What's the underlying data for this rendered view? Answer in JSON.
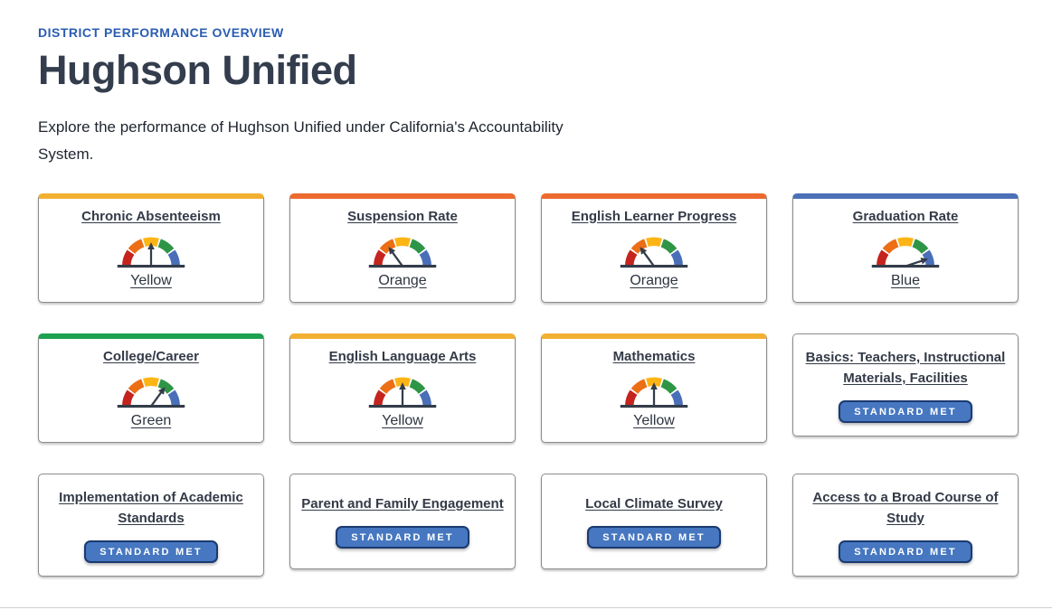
{
  "header": {
    "eyebrow": "DISTRICT PERFORMANCE OVERVIEW",
    "title": "Hughson Unified",
    "description": "Explore the performance of Hughson Unified under California's Accountability System."
  },
  "badge_label": "STANDARD MET",
  "colors": {
    "eyebrow_blue": "#2a5cb2",
    "heading": "#333d4d",
    "badge_fill": "#4677c0",
    "badge_border": "#1b3a70",
    "needle": "#333c4a",
    "gauge_segments": {
      "red": "#c5241e",
      "orange": "#ec6e15",
      "yellow": "#fdb515",
      "green": "#2f9546",
      "blue": "#4a6fb8"
    },
    "accents": {
      "yellow": "#f2b032",
      "orange": "#ec6a2e",
      "blue": "#4c70b8",
      "green": "#1ea150"
    }
  },
  "cards": [
    {
      "title": "Chronic Absenteeism",
      "type": "gauge",
      "status": "Yellow",
      "accent": "yellow",
      "icon": "gauge-icon"
    },
    {
      "title": "Suspension Rate",
      "type": "gauge",
      "status": "Orange",
      "accent": "orange",
      "icon": "gauge-icon"
    },
    {
      "title": "English Learner Progress",
      "type": "gauge",
      "status": "Orange",
      "accent": "orange",
      "icon": "gauge-icon"
    },
    {
      "title": "Graduation Rate",
      "type": "gauge",
      "status": "Blue",
      "accent": "blue",
      "icon": "gauge-icon"
    },
    {
      "title": "College/Career",
      "type": "gauge",
      "status": "Green",
      "accent": "green",
      "icon": "gauge-icon"
    },
    {
      "title": "English Language Arts",
      "type": "gauge",
      "status": "Yellow",
      "accent": "yellow",
      "icon": "gauge-icon"
    },
    {
      "title": "Mathematics",
      "type": "gauge",
      "status": "Yellow",
      "accent": "yellow",
      "icon": "gauge-icon"
    },
    {
      "title": "Basics: Teachers, Instructional Materials, Facilities",
      "type": "standard"
    },
    {
      "title": "Implementation of Academic Standards",
      "type": "standard"
    },
    {
      "title": "Parent and Family Engagement",
      "type": "standard"
    },
    {
      "title": "Local Climate Survey",
      "type": "standard"
    },
    {
      "title": "Access to a Broad Course of Study",
      "type": "standard"
    }
  ],
  "status_angles": {
    "Red": 162,
    "Orange": 126,
    "Yellow": 90,
    "Green": 54,
    "Blue": 18
  }
}
